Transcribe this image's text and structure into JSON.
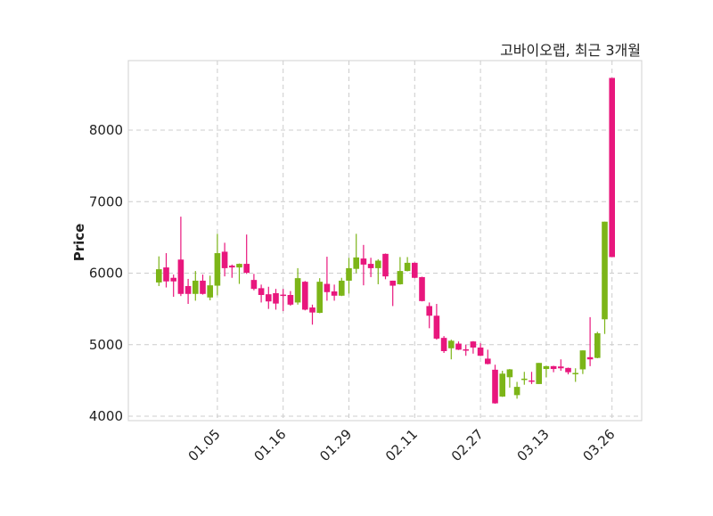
{
  "chart_data": {
    "type": "candlestick",
    "title": "고바이오랩, 최근 3개월",
    "xlabel": "",
    "ylabel": "Price",
    "ylim": [
      3938,
      8972
    ],
    "yticks": [
      4000,
      5000,
      6000,
      7000,
      8000
    ],
    "xtick_labels": [
      "01.05",
      "01.16",
      "01.29",
      "02.11",
      "02.27",
      "03.13",
      "03.26"
    ],
    "xtick_indices": [
      8,
      17,
      26,
      35,
      44,
      53,
      62
    ],
    "grid": true,
    "colors": {
      "up": "#7cb518",
      "down": "#e8177d",
      "grid": "#cccccc",
      "frame": "#d0d0d0"
    },
    "ohlc": [
      [
        5870,
        6235,
        5820,
        6055
      ],
      [
        6080,
        6280,
        5800,
        5885
      ],
      [
        5935,
        5980,
        5670,
        5885
      ],
      [
        6190,
        6790,
        5680,
        5710
      ],
      [
        5820,
        5920,
        5570,
        5710
      ],
      [
        5710,
        6030,
        5615,
        5895
      ],
      [
        5895,
        5980,
        5700,
        5710
      ],
      [
        5660,
        5965,
        5620,
        5830
      ],
      [
        5825,
        6550,
        5690,
        6280
      ],
      [
        6300,
        6425,
        5955,
        6070
      ],
      [
        6105,
        6120,
        5935,
        6080
      ],
      [
        6080,
        6135,
        5850,
        6130
      ],
      [
        6130,
        6540,
        5990,
        6005
      ],
      [
        5905,
        5990,
        5760,
        5780
      ],
      [
        5790,
        5840,
        5590,
        5695
      ],
      [
        5705,
        5810,
        5500,
        5605
      ],
      [
        5720,
        5780,
        5490,
        5575
      ],
      [
        5700,
        5780,
        5470,
        5690
      ],
      [
        5695,
        5750,
        5545,
        5560
      ],
      [
        5590,
        6070,
        5560,
        5930
      ],
      [
        5880,
        5890,
        5480,
        5490
      ],
      [
        5520,
        5560,
        5280,
        5450
      ],
      [
        5445,
        5930,
        5440,
        5880
      ],
      [
        5850,
        6230,
        5615,
        5735
      ],
      [
        5745,
        5840,
        5615,
        5685
      ],
      [
        5685,
        5935,
        5680,
        5895
      ],
      [
        5895,
        6215,
        5715,
        6070
      ],
      [
        6060,
        6550,
        6000,
        6220
      ],
      [
        6205,
        6395,
        5830,
        6120
      ],
      [
        6130,
        6215,
        5945,
        6070
      ],
      [
        6070,
        6195,
        5845,
        6175
      ],
      [
        6270,
        6275,
        5915,
        5955
      ],
      [
        5895,
        5895,
        5540,
        5825
      ],
      [
        5845,
        6225,
        5840,
        6030
      ],
      [
        6030,
        6225,
        6025,
        6145
      ],
      [
        6145,
        6150,
        5930,
        5935
      ],
      [
        5945,
        5950,
        5605,
        5610
      ],
      [
        5540,
        5590,
        5230,
        5405
      ],
      [
        5405,
        5570,
        5070,
        5085
      ],
      [
        5095,
        5120,
        4885,
        4910
      ],
      [
        4950,
        5070,
        4795,
        5055
      ],
      [
        5015,
        5045,
        4925,
        4930
      ],
      [
        4935,
        5000,
        4845,
        4925
      ],
      [
        5045,
        5050,
        4875,
        4960
      ],
      [
        4960,
        5020,
        4840,
        4845
      ],
      [
        4805,
        4930,
        4725,
        4730
      ],
      [
        4650,
        4720,
        4175,
        4180
      ],
      [
        4275,
        4635,
        4270,
        4595
      ],
      [
        4545,
        4660,
        4400,
        4655
      ],
      [
        4295,
        4480,
        4245,
        4410
      ],
      [
        4515,
        4620,
        4440,
        4525
      ],
      [
        4500,
        4620,
        4450,
        4490
      ],
      [
        4450,
        4745,
        4450,
        4745
      ],
      [
        4660,
        4705,
        4545,
        4700
      ],
      [
        4700,
        4705,
        4615,
        4660
      ],
      [
        4695,
        4795,
        4635,
        4670
      ],
      [
        4675,
        4680,
        4585,
        4615
      ],
      [
        4595,
        4670,
        4480,
        4605
      ],
      [
        4655,
        4920,
        4590,
        4920
      ],
      [
        4825,
        5385,
        4700,
        4795
      ],
      [
        4815,
        5180,
        4810,
        5160
      ],
      [
        5355,
        6720,
        5150,
        6720
      ],
      [
        8730,
        8730,
        6225,
        6225
      ]
    ]
  }
}
